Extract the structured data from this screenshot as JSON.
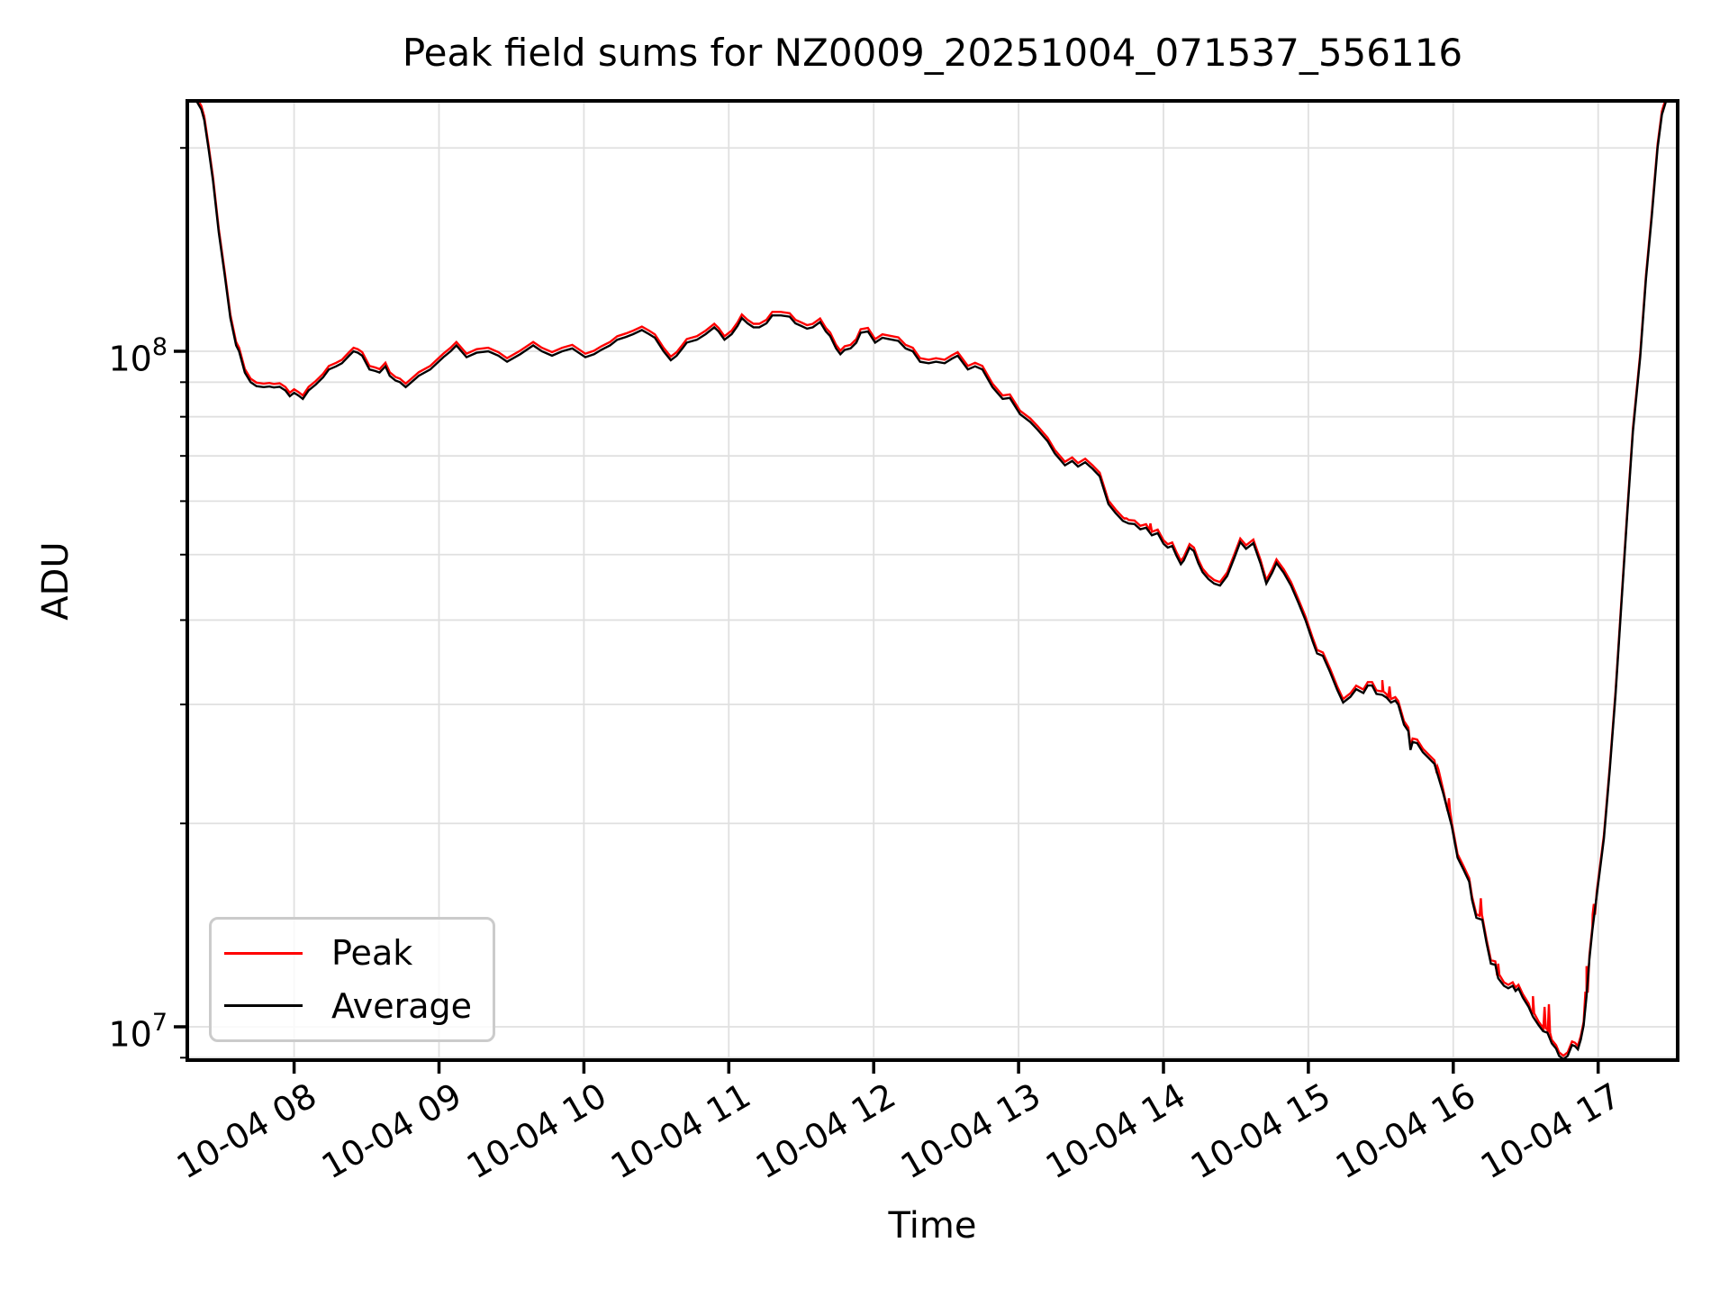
{
  "figure": {
    "title": "Peak field sums for NZ0009_20251004_071537_556116",
    "xlabel": "Time",
    "ylabel": "ADU"
  },
  "legend": {
    "position": "lower left",
    "items": [
      {
        "label": "Peak",
        "color": "#ff0000"
      },
      {
        "label": "Average",
        "color": "#000000"
      }
    ]
  },
  "chart_data": {
    "type": "line",
    "title": "Peak field sums for NZ0009_20251004_071537_556116",
    "xlabel": "Time",
    "ylabel": "ADU",
    "y_scale": "log",
    "x_unit": "decimal hours on 2025-10-04",
    "y_unit": "millions of ADU",
    "xlim_hours": [
      7.265,
      17.55
    ],
    "ylim_millions": [
      8.9,
      235
    ],
    "grid": {
      "color": "#e0e0e0",
      "which": "major and minor"
    },
    "xticks": [
      {
        "hour": 8,
        "label": "10-04 08"
      },
      {
        "hour": 9,
        "label": "10-04 09"
      },
      {
        "hour": 10,
        "label": "10-04 10"
      },
      {
        "hour": 11,
        "label": "10-04 11"
      },
      {
        "hour": 12,
        "label": "10-04 12"
      },
      {
        "hour": 13,
        "label": "10-04 13"
      },
      {
        "hour": 14,
        "label": "10-04 14"
      },
      {
        "hour": 15,
        "label": "10-04 15"
      },
      {
        "hour": 16,
        "label": "10-04 16"
      },
      {
        "hour": 17,
        "label": "10-04 17"
      }
    ],
    "yticks_major": [
      {
        "value_millions": 100,
        "base": "10",
        "exp": "8"
      },
      {
        "value_millions": 10,
        "base": "10",
        "exp": "7"
      }
    ],
    "yticks_minor_millions": [
      200,
      90,
      80,
      70,
      60,
      50,
      40,
      30,
      20,
      9
    ],
    "series": [
      {
        "name": "Peak",
        "color": "#ff0000",
        "derivation": "average curve plus narrow upward spikes",
        "base_multiplier": 1.012,
        "spikes_t_tip_millions": [
          [
            13.74,
            56.6
          ],
          [
            13.91,
            55.6
          ],
          [
            15.51,
            32.6
          ],
          [
            15.56,
            31.9
          ],
          [
            15.89,
            24.3
          ],
          [
            15.97,
            21.8
          ],
          [
            16.19,
            15.5
          ],
          [
            16.31,
            12.4
          ],
          [
            16.55,
            11.1
          ],
          [
            16.63,
            10.7
          ],
          [
            16.66,
            10.8
          ],
          [
            16.92,
            12.3
          ],
          [
            16.97,
            15.2
          ]
        ]
      },
      {
        "name": "Average",
        "color": "#000000",
        "points_t_millions": [
          [
            7.265,
            235
          ],
          [
            7.33,
            234
          ],
          [
            7.36,
            228
          ],
          [
            7.38,
            220
          ],
          [
            7.41,
            199
          ],
          [
            7.44,
            179
          ],
          [
            7.48,
            150
          ],
          [
            7.52,
            130
          ],
          [
            7.56,
            112
          ],
          [
            7.6,
            102
          ],
          [
            7.62,
            100
          ],
          [
            7.66,
            93
          ],
          [
            7.7,
            90
          ],
          [
            7.74,
            88.8
          ],
          [
            7.79,
            88.5
          ],
          [
            7.83,
            88.7
          ],
          [
            7.86,
            88.4
          ],
          [
            7.9,
            88.6
          ],
          [
            7.94,
            87.5
          ],
          [
            7.97,
            85.8
          ],
          [
            8.0,
            86.8
          ],
          [
            8.03,
            86
          ],
          [
            8.06,
            85
          ],
          [
            8.1,
            87.5
          ],
          [
            8.15,
            89.3
          ],
          [
            8.2,
            91.5
          ],
          [
            8.24,
            94
          ],
          [
            8.29,
            95
          ],
          [
            8.33,
            96
          ],
          [
            8.38,
            98.5
          ],
          [
            8.41,
            100
          ],
          [
            8.44,
            99.5
          ],
          [
            8.47,
            98.5
          ],
          [
            8.52,
            94
          ],
          [
            8.56,
            93.5
          ],
          [
            8.59,
            93
          ],
          [
            8.63,
            95
          ],
          [
            8.66,
            92
          ],
          [
            8.7,
            90.5
          ],
          [
            8.73,
            90
          ],
          [
            8.77,
            88.5
          ],
          [
            8.81,
            90
          ],
          [
            8.86,
            92
          ],
          [
            8.94,
            94
          ],
          [
            9.03,
            98
          ],
          [
            9.08,
            100
          ],
          [
            9.12,
            102
          ],
          [
            9.19,
            98
          ],
          [
            9.26,
            99.5
          ],
          [
            9.34,
            100
          ],
          [
            9.41,
            98.5
          ],
          [
            9.47,
            96.5
          ],
          [
            9.56,
            99
          ],
          [
            9.65,
            102
          ],
          [
            9.71,
            100
          ],
          [
            9.78,
            98.5
          ],
          [
            9.85,
            100
          ],
          [
            9.92,
            101
          ],
          [
            10.01,
            98
          ],
          [
            10.07,
            99
          ],
          [
            10.12,
            100.5
          ],
          [
            10.18,
            102
          ],
          [
            10.23,
            104
          ],
          [
            10.29,
            105
          ],
          [
            10.34,
            106
          ],
          [
            10.4,
            107.5
          ],
          [
            10.45,
            106
          ],
          [
            10.49,
            104.7
          ],
          [
            10.55,
            100
          ],
          [
            10.6,
            97
          ],
          [
            10.64,
            98.5
          ],
          [
            10.68,
            101
          ],
          [
            10.71,
            103
          ],
          [
            10.78,
            104
          ],
          [
            10.84,
            106
          ],
          [
            10.9,
            108.5
          ],
          [
            10.93,
            107
          ],
          [
            10.97,
            104
          ],
          [
            11.02,
            106
          ],
          [
            11.06,
            109
          ],
          [
            11.09,
            112
          ],
          [
            11.13,
            110
          ],
          [
            11.17,
            108.5
          ],
          [
            11.21,
            108.5
          ],
          [
            11.26,
            110
          ],
          [
            11.3,
            113
          ],
          [
            11.36,
            113
          ],
          [
            11.42,
            112.5
          ],
          [
            11.46,
            110
          ],
          [
            11.5,
            109
          ],
          [
            11.54,
            108
          ],
          [
            11.58,
            108.5
          ],
          [
            11.63,
            110.5
          ],
          [
            11.67,
            107
          ],
          [
            11.7,
            105.3
          ],
          [
            11.74,
            101
          ],
          [
            11.77,
            99
          ],
          [
            11.8,
            100.5
          ],
          [
            11.84,
            101
          ],
          [
            11.88,
            103
          ],
          [
            11.91,
            106.5
          ],
          [
            11.96,
            107
          ],
          [
            12.01,
            103
          ],
          [
            12.06,
            104.7
          ],
          [
            12.1,
            104.3
          ],
          [
            12.17,
            103.6
          ],
          [
            12.22,
            101
          ],
          [
            12.27,
            100
          ],
          [
            12.32,
            96.5
          ],
          [
            12.38,
            96
          ],
          [
            12.43,
            96.5
          ],
          [
            12.49,
            96
          ],
          [
            12.54,
            97.5
          ],
          [
            12.58,
            98.5
          ],
          [
            12.65,
            94
          ],
          [
            12.7,
            95
          ],
          [
            12.75,
            94
          ],
          [
            12.82,
            88.5
          ],
          [
            12.89,
            85
          ],
          [
            12.94,
            85.3
          ],
          [
            13.01,
            80.7
          ],
          [
            13.08,
            78.6
          ],
          [
            13.13,
            76.6
          ],
          [
            13.2,
            73.6
          ],
          [
            13.25,
            70.6
          ],
          [
            13.32,
            67.8
          ],
          [
            13.37,
            68.8
          ],
          [
            13.41,
            67.5
          ],
          [
            13.46,
            68.5
          ],
          [
            13.51,
            67
          ],
          [
            13.56,
            65.3
          ],
          [
            13.62,
            59.4
          ],
          [
            13.67,
            57.6
          ],
          [
            13.72,
            56.1
          ],
          [
            13.76,
            55.6
          ],
          [
            13.8,
            55.5
          ],
          [
            13.84,
            54.5
          ],
          [
            13.88,
            54.8
          ],
          [
            13.92,
            53.4
          ],
          [
            13.96,
            53.8
          ],
          [
            14.0,
            51.9
          ],
          [
            14.03,
            51.2
          ],
          [
            14.06,
            51.5
          ],
          [
            14.09,
            49.8
          ],
          [
            14.12,
            48.4
          ],
          [
            14.14,
            49
          ],
          [
            14.18,
            51.2
          ],
          [
            14.21,
            50.6
          ],
          [
            14.24,
            48.6
          ],
          [
            14.27,
            47.1
          ],
          [
            14.31,
            46
          ],
          [
            14.35,
            45.3
          ],
          [
            14.39,
            45
          ],
          [
            14.44,
            46.5
          ],
          [
            14.49,
            49.5
          ],
          [
            14.53,
            52.2
          ],
          [
            14.57,
            51
          ],
          [
            14.62,
            52
          ],
          [
            14.67,
            48.5
          ],
          [
            14.71,
            45.3
          ],
          [
            14.75,
            47
          ],
          [
            14.78,
            48.6
          ],
          [
            14.83,
            47
          ],
          [
            14.88,
            45
          ],
          [
            14.93,
            42.5
          ],
          [
            14.98,
            40
          ],
          [
            15.03,
            37.2
          ],
          [
            15.06,
            35.7
          ],
          [
            15.1,
            35.4
          ],
          [
            15.15,
            33.5
          ],
          [
            15.2,
            31.5
          ],
          [
            15.24,
            30.2
          ],
          [
            15.29,
            30.8
          ],
          [
            15.33,
            31.6
          ],
          [
            15.38,
            31.2
          ],
          [
            15.41,
            32
          ],
          [
            15.44,
            32
          ],
          [
            15.47,
            31.1
          ],
          [
            15.51,
            31
          ],
          [
            15.54,
            30.7
          ],
          [
            15.57,
            30.2
          ],
          [
            15.6,
            30.4
          ],
          [
            15.62,
            30
          ],
          [
            15.66,
            28
          ],
          [
            15.69,
            27.4
          ],
          [
            15.705,
            25.7
          ],
          [
            15.72,
            26.4
          ],
          [
            15.75,
            26.3
          ],
          [
            15.79,
            25.5
          ],
          [
            15.83,
            25
          ],
          [
            15.87,
            24.5
          ],
          [
            15.93,
            22.2
          ],
          [
            15.99,
            19.8
          ],
          [
            16.03,
            17.8
          ],
          [
            16.07,
            17.1
          ],
          [
            16.11,
            16.4
          ],
          [
            16.13,
            15.4
          ],
          [
            16.16,
            14.5
          ],
          [
            16.2,
            14.4
          ],
          [
            16.23,
            13.3
          ],
          [
            16.26,
            12.4
          ],
          [
            16.29,
            12.35
          ],
          [
            16.31,
            11.8
          ],
          [
            16.35,
            11.5
          ],
          [
            16.38,
            11.4
          ],
          [
            16.41,
            11.5
          ],
          [
            16.43,
            11.3
          ],
          [
            16.45,
            11.4
          ],
          [
            16.48,
            11.05
          ],
          [
            16.52,
            10.7
          ],
          [
            16.55,
            10.35
          ],
          [
            16.59,
            10.05
          ],
          [
            16.62,
            9.85
          ],
          [
            16.65,
            9.8
          ],
          [
            16.68,
            9.45
          ],
          [
            16.71,
            9.28
          ],
          [
            16.73,
            9.06
          ],
          [
            16.76,
            8.95
          ],
          [
            16.79,
            9.06
          ],
          [
            16.82,
            9.4
          ],
          [
            16.84,
            9.36
          ],
          [
            16.86,
            9.26
          ],
          [
            16.88,
            9.57
          ],
          [
            16.9,
            10.05
          ],
          [
            16.92,
            11.1
          ],
          [
            16.94,
            12.6
          ],
          [
            16.96,
            13.9
          ],
          [
            16.99,
            15.65
          ],
          [
            17.01,
            16.9
          ],
          [
            17.04,
            19
          ],
          [
            17.08,
            24
          ],
          [
            17.12,
            31
          ],
          [
            17.16,
            42
          ],
          [
            17.2,
            57
          ],
          [
            17.24,
            76
          ],
          [
            17.29,
            98
          ],
          [
            17.33,
            128
          ],
          [
            17.37,
            158
          ],
          [
            17.41,
            200
          ],
          [
            17.44,
            224
          ],
          [
            17.47,
            235
          ],
          [
            17.55,
            235
          ]
        ]
      }
    ]
  }
}
